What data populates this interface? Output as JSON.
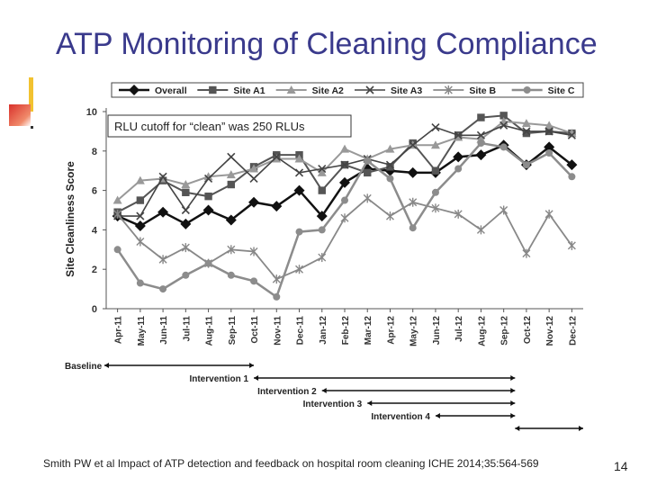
{
  "slide": {
    "title": "ATP Monitoring of Cleaning Compliance",
    "footer": "Smith PW et al  Impact of ATP detection and feedback on hospital room cleaning ICHE 2014;35:564-569",
    "page_number": "14"
  },
  "chart_data": {
    "type": "line",
    "title": "",
    "xlabel": "",
    "ylabel": "Site Cleanliness Score",
    "ylim": [
      0,
      10
    ],
    "yticks": [
      0,
      2,
      4,
      6,
      8,
      10
    ],
    "annotation": "RLU cutoff for “clean” was 250 RLUs",
    "categories": [
      "Apr-11",
      "May-11",
      "Jun-11",
      "Jul-11",
      "Aug-11",
      "Sep-11",
      "Oct-11",
      "Nov-11",
      "Dec-11",
      "Jan-12",
      "Feb-12",
      "Mar-12",
      "Apr-12",
      "May-12",
      "Jun-12",
      "Jul-12",
      "Aug-12",
      "Sep-12",
      "Oct-12",
      "Nov-12",
      "Dec-12"
    ],
    "series": [
      {
        "name": "Overall",
        "marker": "diamond",
        "color": "#111111",
        "width": 2.5,
        "values": [
          4.7,
          4.2,
          4.9,
          4.3,
          5.0,
          4.5,
          5.4,
          5.2,
          6.0,
          4.7,
          6.4,
          7.1,
          7.0,
          6.9,
          6.9,
          7.7,
          7.8,
          8.3,
          7.3,
          8.2,
          7.3
        ]
      },
      {
        "name": "Site A1",
        "marker": "square",
        "color": "#555555",
        "width": 2,
        "values": [
          4.9,
          5.5,
          6.5,
          5.9,
          5.7,
          6.3,
          7.2,
          7.8,
          7.8,
          6.0,
          7.3,
          6.9,
          7.2,
          8.4,
          7.0,
          8.8,
          9.7,
          9.8,
          8.9,
          9.0,
          8.9
        ]
      },
      {
        "name": "Site A2",
        "marker": "triangle",
        "color": "#999999",
        "width": 2,
        "values": [
          5.5,
          6.5,
          6.6,
          6.3,
          6.7,
          6.8,
          7.1,
          7.6,
          7.6,
          6.9,
          8.1,
          7.6,
          8.1,
          8.3,
          8.3,
          8.7,
          8.6,
          9.5,
          9.4,
          9.3,
          8.9
        ]
      },
      {
        "name": "Site A3",
        "marker": "x",
        "color": "#444444",
        "width": 1.6,
        "values": [
          4.7,
          4.7,
          6.7,
          5.0,
          6.6,
          7.7,
          6.6,
          7.7,
          6.9,
          7.1,
          7.3,
          7.6,
          7.3,
          8.3,
          9.2,
          8.8,
          8.8,
          9.3,
          9.0,
          9.0,
          8.8
        ]
      },
      {
        "name": "Site B",
        "marker": "star",
        "color": "#888888",
        "width": 1.8,
        "values": [
          4.8,
          3.4,
          2.5,
          3.1,
          2.3,
          3.0,
          2.9,
          1.5,
          2.0,
          2.6,
          4.6,
          5.6,
          4.7,
          5.4,
          5.1,
          4.8,
          4.0,
          5.0,
          2.8,
          4.8,
          3.2
        ]
      },
      {
        "name": "Site C",
        "marker": "circle",
        "color": "#8c8c8c",
        "width": 2.5,
        "values": [
          3.0,
          1.3,
          1.0,
          1.7,
          2.3,
          1.7,
          1.4,
          0.6,
          3.9,
          4.0,
          5.5,
          7.5,
          6.6,
          4.1,
          5.9,
          7.1,
          8.4,
          8.2,
          7.3,
          7.9,
          6.7
        ]
      }
    ],
    "phases": [
      {
        "label": "Baseline",
        "start": -0.5,
        "end": 6.0,
        "start_arrow": true,
        "end_arrow": true
      },
      {
        "label": "Intervention 1",
        "start": 6.0,
        "end": 17.5,
        "start_arrow": true,
        "end_arrow": true
      },
      {
        "label": "Intervention 2",
        "start": 9.0,
        "end": 17.5,
        "start_arrow": true,
        "end_arrow": true
      },
      {
        "label": "Intervention 3",
        "start": 11.0,
        "end": 17.5,
        "start_arrow": true,
        "end_arrow": true
      },
      {
        "label": "Intervention 4",
        "start": 14.0,
        "end": 17.5,
        "start_arrow": true,
        "end_arrow": true
      },
      {
        "label": "",
        "start": 17.5,
        "end": 20.5,
        "start_arrow": true,
        "end_arrow": true
      }
    ]
  }
}
